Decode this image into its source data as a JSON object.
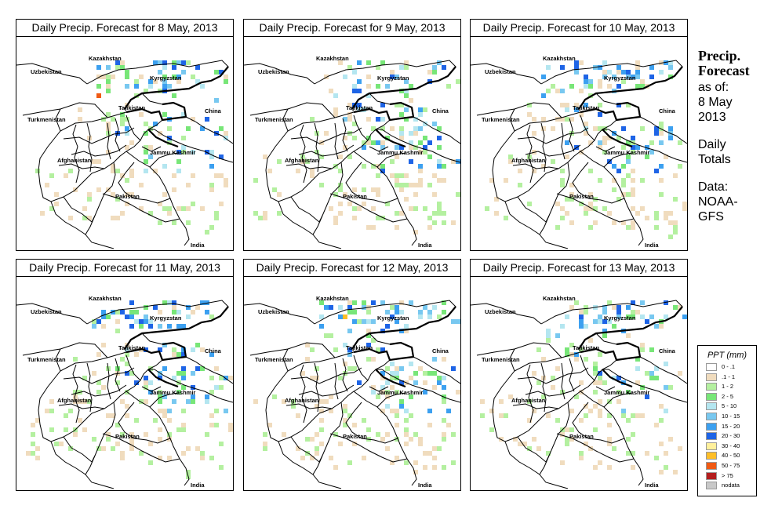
{
  "panels": [
    {
      "title": "Daily Precip. Forecast for  8 May, 2013"
    },
    {
      "title": "Daily Precip. Forecast for  9 May, 2013"
    },
    {
      "title": "Daily Precip. Forecast for  10 May, 2013"
    },
    {
      "title": "Daily Precip. Forecast for  11 May, 2013"
    },
    {
      "title": "Daily Precip. Forecast for  12 May, 2013"
    },
    {
      "title": "Daily Precip. Forecast for  13 May, 2013"
    }
  ],
  "map_labels": {
    "kazakhstan": "Kazakhstan",
    "uzbekistan": "Uzbekistan",
    "kyrgyzstan": "Kyrgyzstan",
    "tajikistan": "Tajikistan",
    "china": "China",
    "turkmenistan": "Turkmenistan",
    "jammu_kashmir": "Jammu Kashmir",
    "afghanistan": "Afghanistan",
    "pakistan": "Pakistan",
    "india": "India"
  },
  "side": {
    "heading_line1": "Precip.",
    "heading_line2": "Forecast",
    "asof_line1": "as of:",
    "asof_line2": "8 May",
    "asof_line3": "2013",
    "daily_line1": "Daily",
    "daily_line2": "Totals",
    "data_line1": "Data:",
    "data_line2": "NOAA-",
    "data_line3": "GFS"
  },
  "legend": {
    "title": "PPT (mm)",
    "items": [
      {
        "label": "0 - .1",
        "color": "#ffffff"
      },
      {
        "label": ".1 - 1",
        "color": "#f0dcbe"
      },
      {
        "label": "1 - 2",
        "color": "#b4f0a0"
      },
      {
        "label": "2 - 5",
        "color": "#78e678"
      },
      {
        "label": "5 - 10",
        "color": "#b4e6f0"
      },
      {
        "label": "10 - 15",
        "color": "#78c8f0"
      },
      {
        "label": "15 - 20",
        "color": "#3ca0f0"
      },
      {
        "label": "20 - 30",
        "color": "#1e64e6"
      },
      {
        "label": "30 - 40",
        "color": "#fff09c"
      },
      {
        "label": "40 - 50",
        "color": "#ffbe28"
      },
      {
        "label": "50 - 75",
        "color": "#f05a14"
      },
      {
        "label": "> 75",
        "color": "#b41e1e"
      },
      {
        "label": "nodata",
        "color": "#c8c8c8"
      }
    ]
  },
  "cell_colors": {
    "c1": "#f0dcbe",
    "c2": "#b4f0a0",
    "c3": "#78e678",
    "c4": "#b4e6f0",
    "c5": "#78c8f0",
    "c6": "#3ca0f0",
    "c7": "#1e64e6",
    "c8": "#ffbe28",
    "c9": "#f05a14"
  }
}
